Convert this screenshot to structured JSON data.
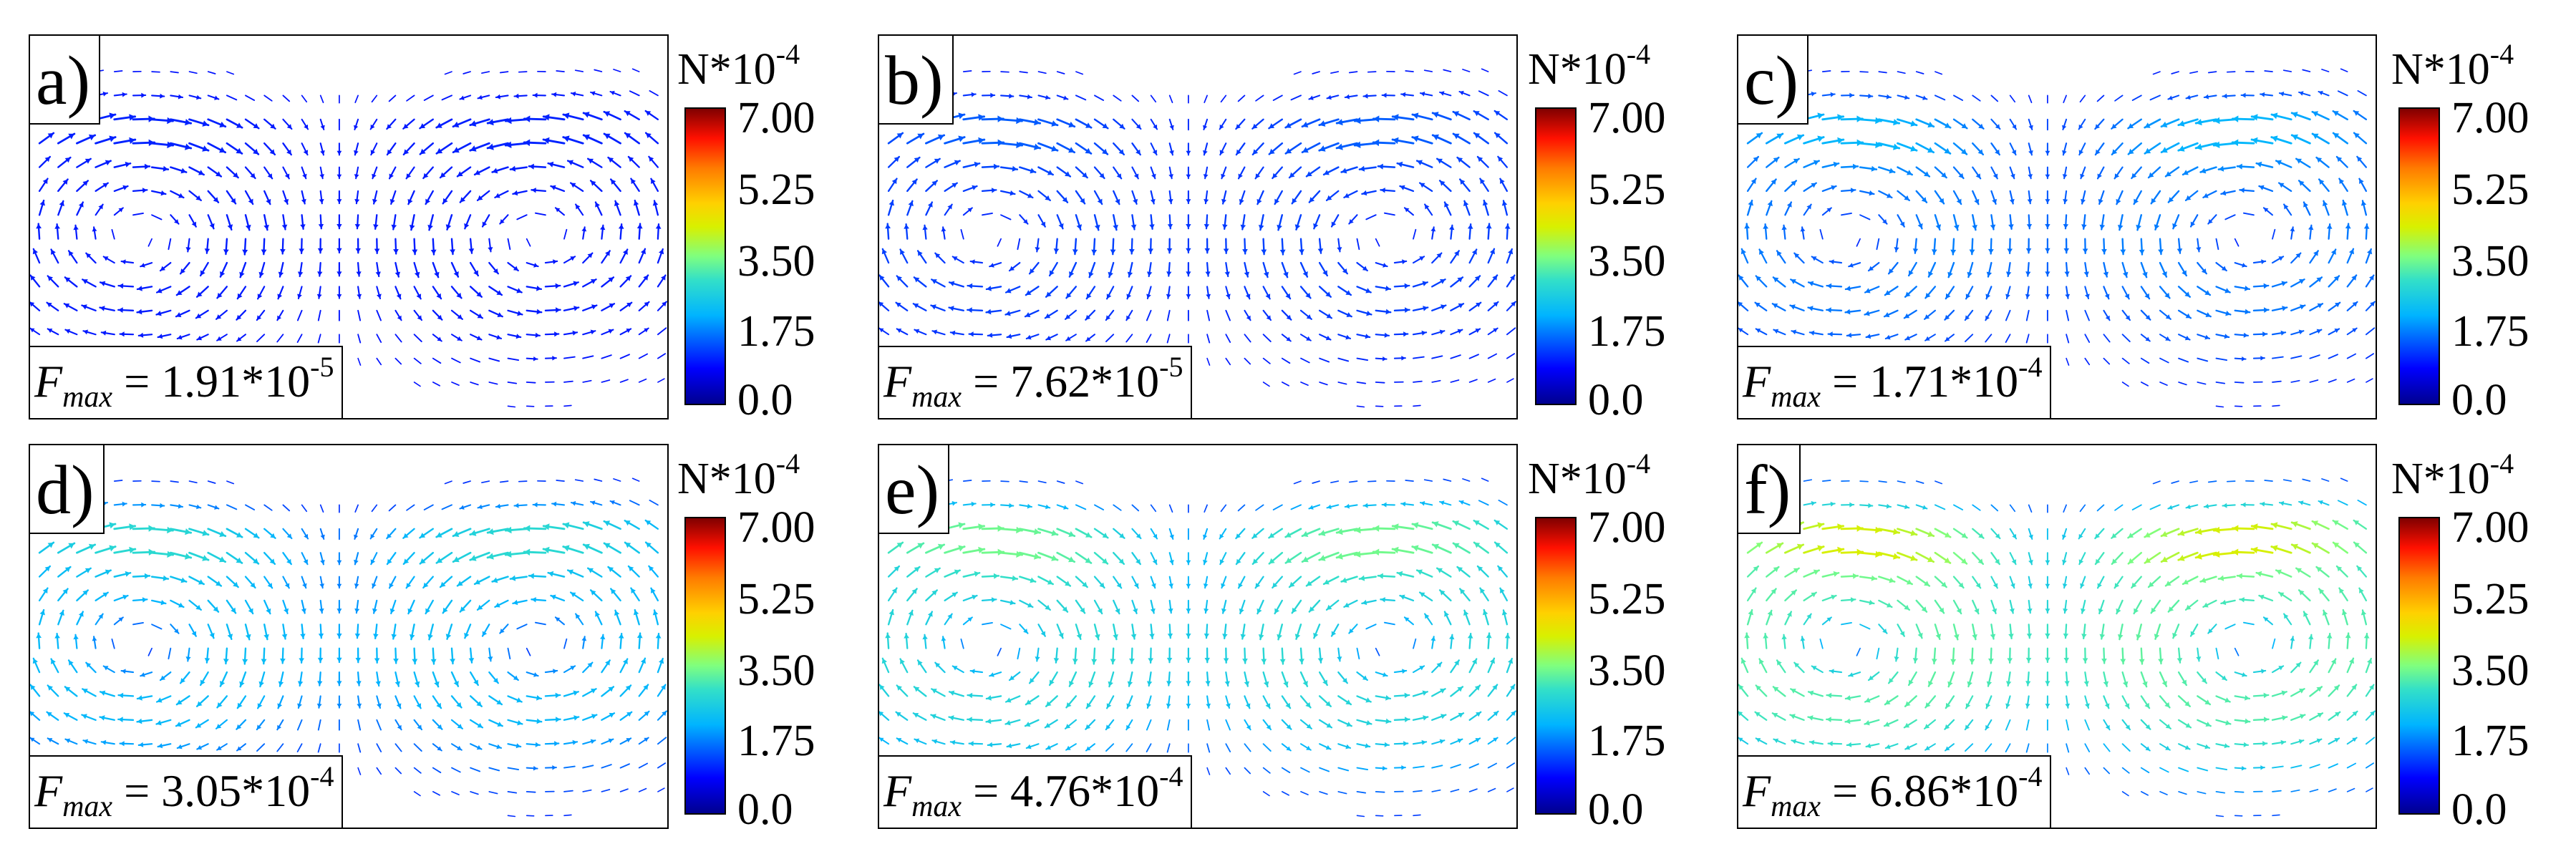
{
  "chart_data": {
    "type": "vector-field",
    "colorbar": {
      "unit_base": "N*10",
      "unit_exp": "-4",
      "ticks": [
        "7.00",
        "5.25",
        "3.50",
        "1.75",
        "0.0"
      ],
      "range": [
        0,
        7.0
      ],
      "colormap": [
        "#00008f",
        "#0000ff",
        "#00b4ff",
        "#33e0c8",
        "#7fff7f",
        "#d8f000",
        "#ffd000",
        "#ff7a00",
        "#ff1000",
        "#800000"
      ]
    },
    "panels": [
      {
        "label": "a)",
        "fmax_symbol": "F",
        "fmax_sub": "max",
        "fmax_eq": " = 1.91*10",
        "fmax_exp": "-5",
        "fmax_value": 0.191
      },
      {
        "label": "b)",
        "fmax_symbol": "F",
        "fmax_sub": "max",
        "fmax_eq": " = 7.62*10",
        "fmax_exp": "-5",
        "fmax_value": 0.762
      },
      {
        "label": "c)",
        "fmax_symbol": "F",
        "fmax_sub": "max",
        "fmax_eq": " = 1.71*10",
        "fmax_exp": "-4",
        "fmax_value": 1.71
      },
      {
        "label": "d)",
        "fmax_symbol": "F",
        "fmax_sub": "max",
        "fmax_eq": " = 3.05*10",
        "fmax_exp": "-4",
        "fmax_value": 3.05
      },
      {
        "label": "e)",
        "fmax_symbol": "F",
        "fmax_sub": "max",
        "fmax_eq": " = 4.76*10",
        "fmax_exp": "-4",
        "fmax_value": 4.76
      },
      {
        "label": "f)",
        "fmax_symbol": "F",
        "fmax_sub": "max",
        "fmax_eq": " = 6.86*10",
        "fmax_exp": "-4",
        "fmax_value": 6.86
      }
    ]
  }
}
